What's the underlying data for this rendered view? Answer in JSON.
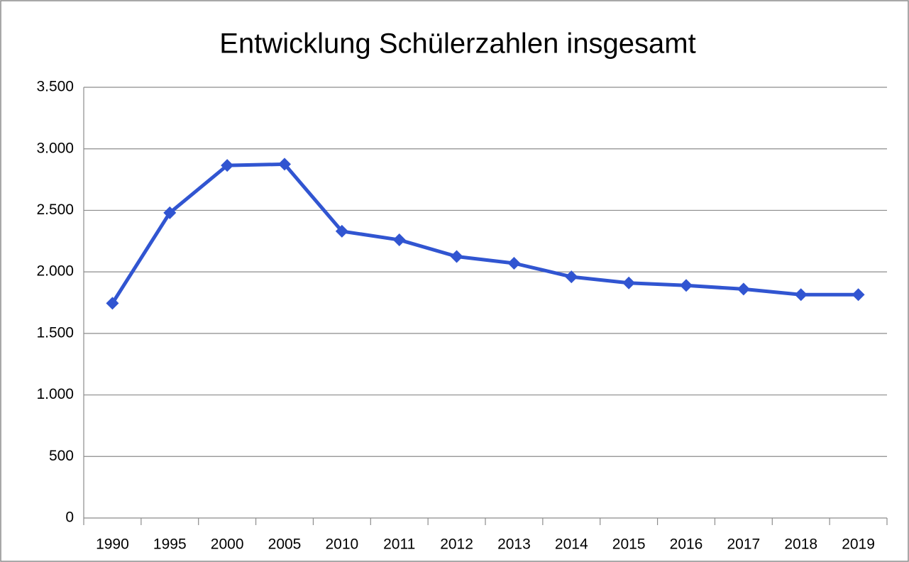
{
  "chart_data": {
    "type": "line",
    "title": "Entwicklung Schülerzahlen insgesamt",
    "categories": [
      "1990",
      "1995",
      "2000",
      "2005",
      "2010",
      "2011",
      "2012",
      "2013",
      "2014",
      "2015",
      "2016",
      "2017",
      "2018",
      "2019"
    ],
    "series": [
      {
        "name": "Schülerzahlen insgesamt",
        "color": "#3155d1",
        "values": [
          1745,
          2480,
          2865,
          2875,
          2330,
          2260,
          2125,
          2070,
          1960,
          1910,
          1890,
          1860,
          1815,
          1815
        ]
      }
    ],
    "ylim": [
      0,
      3500
    ],
    "yticks": [
      0,
      500,
      {
        "value": 1000,
        "label": "1.000"
      },
      {
        "value": 1500,
        "label": "1.500"
      },
      {
        "value": 2000,
        "label": "2.000"
      },
      {
        "value": 2500,
        "label": "2.500"
      },
      {
        "value": 3000,
        "label": "3.000"
      },
      {
        "value": 3500,
        "label": "3.500"
      }
    ],
    "grid": true
  }
}
